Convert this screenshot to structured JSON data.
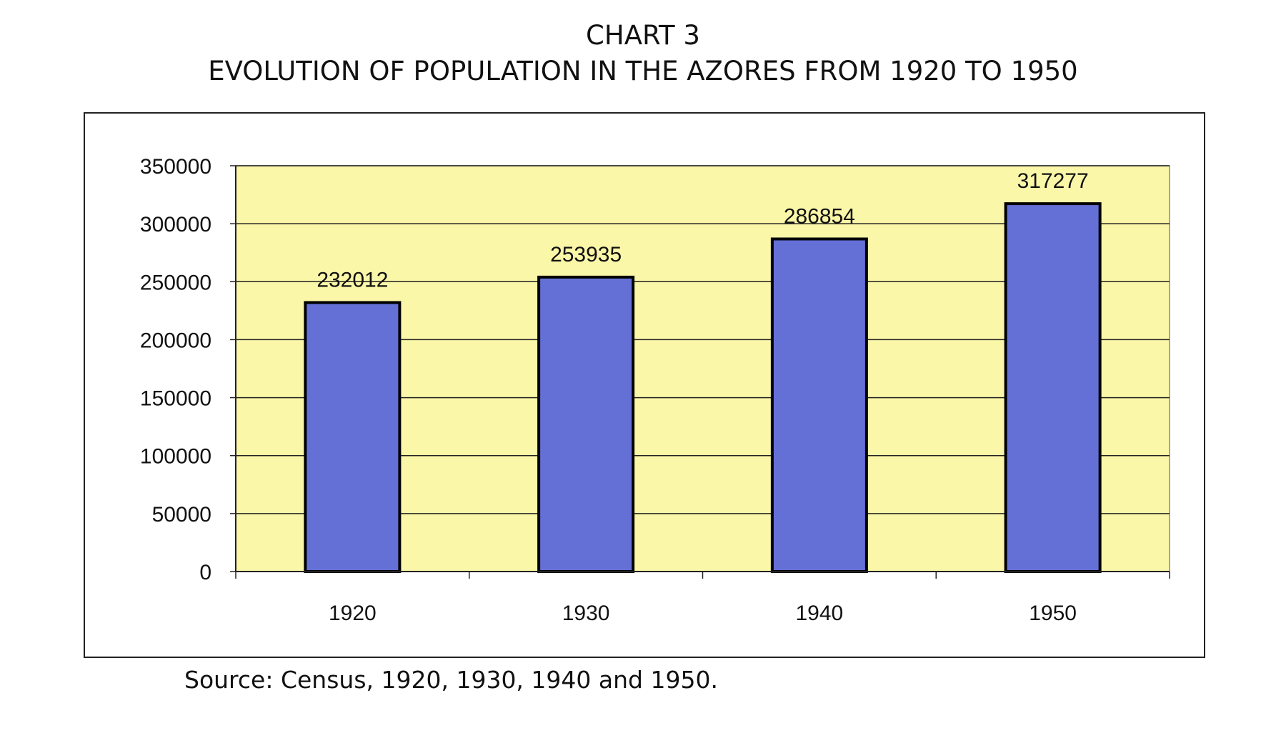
{
  "chart_data": {
    "type": "bar",
    "title": "CHART 3",
    "subtitle": "EVOLUTION OF POPULATION IN THE AZORES FROM 1920 TO 1950",
    "categories": [
      "1920",
      "1930",
      "1940",
      "1950"
    ],
    "values": [
      232012,
      253935,
      286854,
      317277
    ],
    "data_labels": [
      "232012",
      "253935",
      "286854",
      "317277"
    ],
    "xlabel": "",
    "ylabel": "",
    "ylim": [
      0,
      350000
    ],
    "yticks": [
      0,
      50000,
      100000,
      150000,
      200000,
      250000,
      300000,
      350000
    ],
    "ytick_labels": [
      "0",
      "50000",
      "100000",
      "150000",
      "200000",
      "250000",
      "300000",
      "350000"
    ],
    "grid": true,
    "legend": "none",
    "colors": {
      "bar": "#6470d6",
      "plot_area": "#fbf7a8",
      "gridline": "#222222",
      "outline": "#000000"
    }
  },
  "source": "Source: Census, 1920, 1930, 1940 and 1950."
}
